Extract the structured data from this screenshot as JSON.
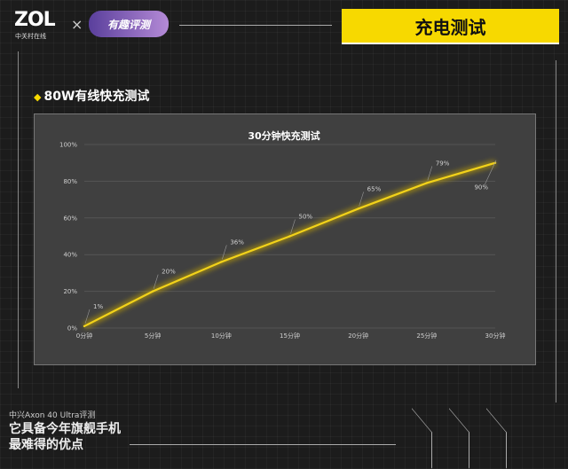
{
  "header": {
    "logo": "ZOL",
    "logo_sub": "中关村在线",
    "cross": "×",
    "badge": "有趣评测",
    "title": "充电测试"
  },
  "section": {
    "title": "80W有线快充测试"
  },
  "footer": {
    "subtitle": "中兴Axon 40 Ultra评测",
    "headline_1": "它具备今年旗舰手机",
    "headline_2": "最难得的优点"
  },
  "colors": {
    "accent": "#f7d900",
    "line": "#f2d21a",
    "plot_bg": "#404040"
  },
  "chart_data": {
    "type": "line",
    "title": "30分钟快充测试",
    "categories": [
      "0分钟",
      "5分钟",
      "10分钟",
      "15分钟",
      "20分钟",
      "25分钟",
      "30分钟"
    ],
    "values": [
      1,
      20,
      36,
      50,
      65,
      79,
      90
    ],
    "data_labels": [
      "1%",
      "20%",
      "36%",
      "50%",
      "65%",
      "79%",
      "90%"
    ],
    "yticks": [
      "0%",
      "20%",
      "40%",
      "60%",
      "80%",
      "100%"
    ],
    "ylim": [
      0,
      100
    ],
    "grid": true,
    "legend": "none"
  }
}
